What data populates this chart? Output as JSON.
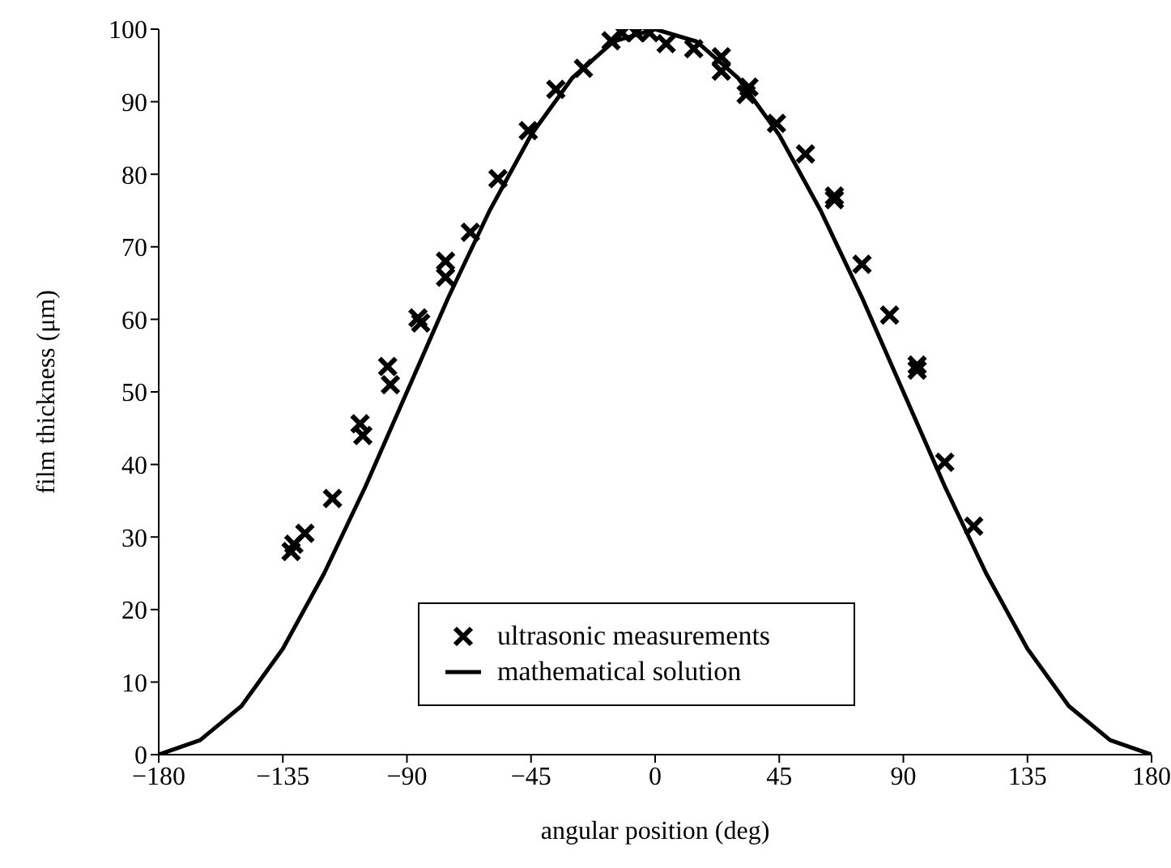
{
  "chart_data": {
    "type": "scatter",
    "xlabel": "angular position (deg)",
    "ylabel": "film thickness (μm)",
    "xlim": [
      -180,
      180
    ],
    "xticks": [
      -180,
      -135,
      -90,
      -45,
      0,
      45,
      90,
      135,
      180
    ],
    "ylim": [
      0,
      100
    ],
    "yticks": [
      0,
      10,
      20,
      30,
      40,
      50,
      60,
      70,
      80,
      90,
      100
    ],
    "grid": false,
    "legend": "bottom",
    "series": [
      {
        "name": "ultrasonic measurements",
        "marker": "cross",
        "color": "#000000",
        "x": [
          -132,
          -131,
          -127,
          -117,
          -107,
          -106,
          -97,
          -96,
          -86,
          -85,
          -76,
          -76,
          -67,
          -57,
          -46,
          -36,
          -26,
          -16,
          -12,
          -7,
          -2,
          4,
          14,
          24,
          24,
          33,
          34,
          44,
          54.5,
          65,
          65,
          75,
          85,
          95,
          95,
          105,
          115.5
        ],
        "values": [
          28,
          29,
          30.5,
          35.3,
          45.6,
          44,
          53.5,
          51,
          60.2,
          59.5,
          65.8,
          68,
          72,
          79.4,
          86,
          91.7,
          94.6,
          98.4,
          99.5,
          99.5,
          99.5,
          98,
          97.3,
          96.2,
          94.2,
          91,
          92,
          87,
          82.8,
          77,
          76.5,
          67.6,
          60.6,
          53.7,
          53,
          40.3,
          31.5
        ]
      },
      {
        "name": "mathematical solution",
        "type": "line",
        "marker": "none",
        "line_style": "solid",
        "color": "#000000",
        "x": [
          -180,
          -165,
          -150,
          -135,
          -120,
          -105,
          -90,
          -75,
          -60,
          -45,
          -30,
          -15,
          0,
          15,
          30,
          45,
          60,
          75,
          90,
          105,
          120,
          135,
          150,
          165,
          180
        ],
        "values": [
          0,
          2,
          6.7,
          14.6,
          25,
          37,
          50,
          63,
          75,
          85.4,
          93.3,
          98.3,
          100,
          98.3,
          93.3,
          85.4,
          75,
          63,
          50,
          37,
          25,
          14.6,
          6.7,
          2,
          0
        ]
      }
    ]
  }
}
